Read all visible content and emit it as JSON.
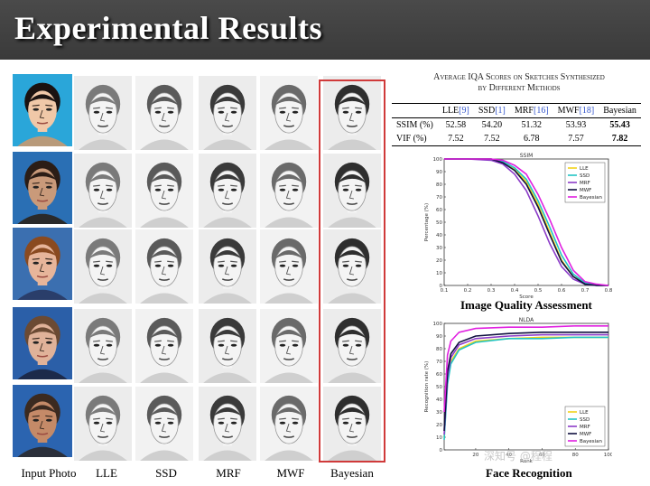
{
  "slide_title": "Experimental Results",
  "columns": [
    "Input Photo",
    "LLE",
    "SSD",
    "MRF",
    "MWF",
    "Bayesian"
  ],
  "faces": [
    {
      "id": "row1",
      "photo_bg": "#2aa6d9",
      "skin": "#f0c8a8",
      "hair": "#1a1210",
      "shirt": "#b89a7a"
    },
    {
      "id": "row2",
      "photo_bg": "#2a6fb4",
      "skin": "#c99a7a",
      "hair": "#2b1d16",
      "shirt": "#2a2a2a"
    },
    {
      "id": "row3",
      "photo_bg": "#3b6fb0",
      "skin": "#e7b59a",
      "hair": "#8a4a20",
      "shirt": "#2a3e6a"
    },
    {
      "id": "row4",
      "photo_bg": "#2b5fa8",
      "skin": "#e0b299",
      "hair": "#6b4a33",
      "shirt": "#1c2a4a"
    },
    {
      "id": "row5",
      "photo_bg": "#2b64b0",
      "skin": "#c48a68",
      "hair": "#3b2a20",
      "shirt": "#2a2f3a"
    }
  ],
  "table": {
    "caption_line1": "Average IQA Scores on Sketches Synthesized",
    "caption_line2": "by Different Methods",
    "headers": [
      {
        "name": "LLE",
        "ref": "[9]"
      },
      {
        "name": "SSD",
        "ref": "[1]"
      },
      {
        "name": "MRF",
        "ref": "[16]"
      },
      {
        "name": "MWF",
        "ref": "[18]"
      },
      {
        "name": "Bayesian",
        "ref": ""
      }
    ],
    "rows": [
      {
        "label": "SSIM (%)",
        "values": [
          "52.58",
          "54.20",
          "51.32",
          "53.93",
          "55.43"
        ]
      },
      {
        "label": "VIF (%)",
        "values": [
          "7.52",
          "7.52",
          "6.78",
          "7.57",
          "7.82"
        ]
      }
    ]
  },
  "iqa_caption": "Image Quality Assessment",
  "fr_caption": "Face Recognition",
  "watermark": "深知号 @程程",
  "colors": {
    "LLE": "#f2d21a",
    "SSD": "#22c4c4",
    "MRF": "#8c3cc8",
    "MWF": "#101040",
    "Bayesian": "#e020e0"
  },
  "chart_data": [
    {
      "type": "line",
      "title": "SSIM",
      "xlabel": "Score",
      "ylabel": "Percentage (%)",
      "xlim": [
        0.1,
        0.8
      ],
      "ylim": [
        0,
        100
      ],
      "xticks": [
        "0.1",
        "0.2",
        "0.3",
        "0.4",
        "0.5",
        "0.6",
        "0.7",
        "0.8"
      ],
      "yticks": [
        "0",
        "10",
        "20",
        "30",
        "40",
        "50",
        "60",
        "70",
        "80",
        "90",
        "100"
      ],
      "legend": "top-right",
      "series": [
        {
          "name": "LLE",
          "x": [
            0.1,
            0.2,
            0.3,
            0.35,
            0.4,
            0.45,
            0.5,
            0.55,
            0.6,
            0.65,
            0.7,
            0.75,
            0.8
          ],
          "y": [
            100,
            100,
            100,
            98,
            92,
            82,
            64,
            42,
            20,
            7,
            2,
            0,
            0
          ]
        },
        {
          "name": "SSD",
          "x": [
            0.1,
            0.2,
            0.3,
            0.35,
            0.4,
            0.45,
            0.5,
            0.55,
            0.6,
            0.65,
            0.7,
            0.75,
            0.8
          ],
          "y": [
            100,
            100,
            100,
            98,
            93,
            84,
            67,
            46,
            24,
            9,
            2,
            0,
            0
          ]
        },
        {
          "name": "MRF",
          "x": [
            0.1,
            0.2,
            0.3,
            0.35,
            0.4,
            0.45,
            0.5,
            0.55,
            0.6,
            0.65,
            0.7,
            0.75,
            0.8
          ],
          "y": [
            100,
            100,
            99,
            96,
            88,
            75,
            55,
            33,
            15,
            5,
            1,
            0,
            0
          ]
        },
        {
          "name": "MWF",
          "x": [
            0.1,
            0.2,
            0.3,
            0.35,
            0.4,
            0.45,
            0.5,
            0.55,
            0.6,
            0.65,
            0.7,
            0.75,
            0.8
          ],
          "y": [
            100,
            100,
            100,
            97,
            91,
            80,
            62,
            40,
            19,
            7,
            1,
            0,
            0
          ]
        },
        {
          "name": "Bayesian",
          "x": [
            0.1,
            0.2,
            0.3,
            0.35,
            0.4,
            0.45,
            0.5,
            0.55,
            0.6,
            0.65,
            0.7,
            0.75,
            0.8
          ],
          "y": [
            100,
            100,
            100,
            99,
            95,
            88,
            72,
            52,
            30,
            12,
            3,
            1,
            0
          ]
        }
      ]
    },
    {
      "type": "line",
      "title": "NLDA",
      "xlabel": "Rank",
      "ylabel": "Recognition rate (%)",
      "xlim": [
        1,
        100
      ],
      "ylim": [
        0,
        100
      ],
      "xticks": [
        "20",
        "40",
        "60",
        "80",
        "100"
      ],
      "yticks": [
        "0",
        "10",
        "20",
        "30",
        "40",
        "50",
        "60",
        "70",
        "80",
        "90",
        "100"
      ],
      "legend": "bottom-right",
      "series": [
        {
          "name": "LLE",
          "x": [
            1,
            3,
            5,
            10,
            20,
            40,
            60,
            80,
            100
          ],
          "y": [
            10,
            55,
            70,
            80,
            86,
            88,
            89,
            89,
            89
          ]
        },
        {
          "name": "SSD",
          "x": [
            1,
            3,
            5,
            10,
            20,
            40,
            60,
            80,
            100
          ],
          "y": [
            8,
            52,
            68,
            79,
            85,
            88,
            88,
            89,
            89
          ]
        },
        {
          "name": "MRF",
          "x": [
            1,
            3,
            5,
            10,
            20,
            40,
            60,
            80,
            100
          ],
          "y": [
            12,
            58,
            73,
            83,
            88,
            90,
            91,
            91,
            91
          ]
        },
        {
          "name": "MWF",
          "x": [
            1,
            3,
            5,
            10,
            20,
            40,
            60,
            80,
            100
          ],
          "y": [
            15,
            62,
            76,
            85,
            90,
            92,
            93,
            93,
            93
          ]
        },
        {
          "name": "Bayesian",
          "x": [
            1,
            3,
            5,
            10,
            20,
            40,
            60,
            80,
            100
          ],
          "y": [
            30,
            75,
            86,
            93,
            96,
            97,
            97,
            98,
            98
          ]
        }
      ]
    }
  ]
}
